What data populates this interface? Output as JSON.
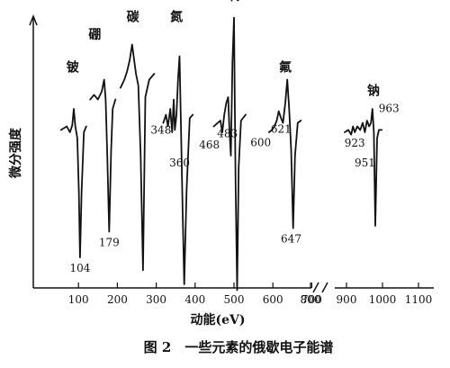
{
  "chart_data": {
    "type": "line",
    "title": "",
    "caption": "图 2　一些元素的俄歇电子能谱",
    "xlabel": "动能(eV)",
    "ylabel": "微分强度",
    "x_ticks": [
      "100",
      "200",
      "300",
      "400",
      "500",
      "600",
      "700",
      "800",
      "900",
      "1000",
      "1100"
    ],
    "x_axis_break_after": 700,
    "xlim": [
      0,
      1100
    ],
    "ylim": [
      -1,
      1
    ],
    "y_tick_labels": false,
    "grid": false,
    "legend": "none",
    "series": [
      {
        "element": "铍",
        "label_x": 85,
        "label_y": 0.62,
        "x": [
          55,
          70,
          78,
          84,
          88,
          92,
          97,
          101,
          104,
          108,
          114,
          120
        ],
        "y": [
          0.12,
          0.15,
          0.1,
          0.16,
          0.3,
          0.15,
          0.05,
          -0.4,
          -0.97,
          -0.4,
          0.1,
          0.15
        ],
        "peaks": [
          {
            "energy": "104",
            "x": 104,
            "y": -0.97,
            "pos": "below"
          }
        ]
      },
      {
        "element": "硼",
        "label_x": 142,
        "label_y": 0.9,
        "x": [
          130,
          140,
          150,
          160,
          166,
          170,
          174,
          179,
          184,
          188,
          195
        ],
        "y": [
          0.38,
          0.42,
          0.38,
          0.45,
          0.55,
          0.38,
          -0.1,
          -0.75,
          -0.05,
          0.3,
          0.38
        ],
        "peaks": [
          {
            "energy": "179",
            "x": 179,
            "y": -0.75,
            "pos": "below"
          }
        ]
      },
      {
        "element": "碳",
        "label_x": 240,
        "label_y": 1.05,
        "x": [
          208,
          218,
          225,
          232,
          238,
          243,
          248,
          254,
          260,
          266,
          272,
          282,
          295
        ],
        "y": [
          0.48,
          0.55,
          0.62,
          0.72,
          0.85,
          0.72,
          0.6,
          0.5,
          -0.1,
          -1.08,
          0.4,
          0.55,
          0.6
        ],
        "peaks": []
      },
      {
        "element": "氮",
        "label_x": 352,
        "label_y": 1.05,
        "x": [
          318,
          325,
          330,
          336,
          341,
          345,
          348,
          352,
          356,
          360,
          364,
          368,
          372,
          378,
          386,
          394
        ],
        "y": [
          0.18,
          0.25,
          0.15,
          0.3,
          0.1,
          0.38,
          0.12,
          0.25,
          0.55,
          0.75,
          0.1,
          -0.6,
          -1.2,
          -0.4,
          0.22,
          0.25
        ],
        "peaks": [
          {
            "energy": "348",
            "x": 348,
            "y": 0.12,
            "pos": "left"
          },
          {
            "energy": "360",
            "x": 360,
            "y": 0.1,
            "pos": "below-far"
          }
        ]
      },
      {
        "element": "氧",
        "label_x": 498,
        "label_y": 1.23,
        "x": [
          448,
          458,
          465,
          470,
          475,
          480,
          485,
          488,
          492,
          496,
          500,
          504,
          508,
          512,
          518,
          530
        ],
        "y": [
          0.15,
          0.18,
          0.2,
          0.1,
          0.25,
          0.35,
          0.4,
          0.15,
          -0.1,
          0.7,
          1.08,
          -0.3,
          -1.25,
          -0.2,
          0.2,
          0.25
        ],
        "peaks": [
          {
            "energy": "468",
            "x": 468,
            "y": 0.1,
            "pos": "left-below"
          },
          {
            "energy": "483",
            "x": 483,
            "y": 0.35,
            "pos": "below-far"
          }
        ]
      },
      {
        "element": "氟",
        "label_x": 632,
        "label_y": 0.62,
        "x": [
          590,
          598,
          604,
          610,
          615,
          621,
          626,
          632,
          637,
          642,
          647,
          652,
          657,
          664,
          672
        ],
        "y": [
          0.1,
          0.12,
          0.15,
          0.2,
          0.28,
          0.22,
          0.18,
          0.35,
          0.55,
          0.3,
          -0.05,
          -0.72,
          -0.1,
          0.18,
          0.2
        ],
        "peaks": [
          {
            "energy": "600",
            "x": 600,
            "y": 0.12,
            "pos": "left-below"
          },
          {
            "energy": "621",
            "x": 621,
            "y": 0.22,
            "pos": "below"
          },
          {
            "energy": "647",
            "x": 647,
            "y": -0.72,
            "pos": "below"
          }
        ]
      },
      {
        "element": "钠",
        "label_x": 975,
        "label_y": 0.42,
        "x": [
          895,
          905,
          913,
          918,
          923,
          930,
          938,
          945,
          951,
          957,
          963,
          968,
          972,
          976,
          980,
          985,
          990,
          998
        ],
        "y": [
          0.1,
          0.12,
          0.08,
          0.15,
          0.1,
          0.15,
          0.12,
          0.18,
          0.1,
          0.2,
          0.15,
          0.18,
          0.3,
          0.1,
          -0.7,
          0.05,
          0.12,
          0.12
        ],
        "peaks": [
          {
            "energy": "923",
            "x": 923,
            "y": 0.1,
            "pos": "below"
          },
          {
            "energy": "951",
            "x": 951,
            "y": 0.1,
            "pos": "below-far"
          },
          {
            "energy": "963",
            "x": 963,
            "y": 0.15,
            "pos": "above-right"
          }
        ]
      }
    ]
  }
}
